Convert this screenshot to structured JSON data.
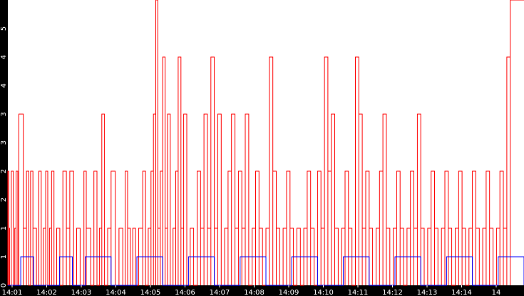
{
  "chart_data": {
    "type": "line",
    "title": "",
    "xlabel": "",
    "ylabel": "",
    "ylim": [
      0,
      5
    ],
    "y_ticks": [
      "0",
      "1",
      "1",
      "2",
      "2",
      "3",
      "3",
      "4",
      "4",
      "5"
    ],
    "y_tick_values": [
      0,
      0.5,
      1,
      1.5,
      2,
      2.5,
      3,
      3.5,
      4,
      4.5
    ],
    "x_tick_labels": [
      "14:01",
      "14:02",
      "14:03",
      "14:04",
      "14:05",
      "14:06",
      "14:07",
      "14:08",
      "14:09",
      "14:10",
      "14:11",
      "14:12",
      "14:13",
      "14:14",
      "14"
    ],
    "x_range_minutes": [
      14.0,
      15.0
    ],
    "x_tick_minutes": [
      1,
      2,
      3,
      4,
      5,
      6,
      7,
      8,
      9,
      10,
      11,
      12,
      13,
      14,
      15
    ],
    "grid": false,
    "background": "#ffffff",
    "series": [
      {
        "color": "#ff0000",
        "segments": [
          [
            0.0,
            2
          ],
          [
            0.3,
            1
          ],
          [
            0.5,
            0
          ],
          [
            1.0,
            2
          ],
          [
            1.6,
            0
          ],
          [
            2.0,
            1
          ],
          [
            2.4,
            2
          ],
          [
            2.9,
            0
          ],
          [
            3.2,
            3
          ],
          [
            4.5,
            1
          ],
          [
            5.4,
            2
          ],
          [
            6.1,
            0
          ],
          [
            6.6,
            2
          ],
          [
            7.3,
            1
          ],
          [
            8.3,
            0
          ],
          [
            9.0,
            2
          ],
          [
            9.7,
            0
          ],
          [
            10.3,
            1
          ],
          [
            11.0,
            2
          ],
          [
            11.6,
            0
          ],
          [
            12.1,
            1
          ],
          [
            12.7,
            2
          ],
          [
            13.4,
            0
          ],
          [
            14.2,
            1
          ],
          [
            15.1,
            0
          ],
          [
            16.0,
            2
          ],
          [
            17.0,
            1
          ],
          [
            18.0,
            2
          ],
          [
            19.1,
            0
          ],
          [
            20.0,
            1
          ],
          [
            21.0,
            0
          ],
          [
            22.1,
            2
          ],
          [
            22.8,
            1
          ],
          [
            24.1,
            0
          ],
          [
            25.0,
            2
          ],
          [
            25.9,
            0
          ],
          [
            26.6,
            1
          ],
          [
            27.3,
            3
          ],
          [
            28.1,
            0
          ],
          [
            29.0,
            1
          ],
          [
            30.0,
            2
          ],
          [
            31.2,
            0
          ],
          [
            32.3,
            1
          ],
          [
            33.4,
            0
          ],
          [
            34.1,
            2
          ],
          [
            34.8,
            1
          ],
          [
            35.6,
            0
          ],
          [
            36.3,
            1
          ],
          [
            37.1,
            0
          ],
          [
            38.0,
            1
          ],
          [
            39.2,
            2
          ],
          [
            40.0,
            0
          ],
          [
            40.8,
            1
          ],
          [
            41.6,
            2
          ],
          [
            42.3,
            3
          ],
          [
            43.0,
            5
          ],
          [
            43.6,
            1
          ],
          [
            44.3,
            2
          ],
          [
            45.0,
            4
          ],
          [
            45.7,
            1
          ],
          [
            46.4,
            3
          ],
          [
            47.2,
            0
          ],
          [
            48.0,
            1
          ],
          [
            48.8,
            2
          ],
          [
            49.5,
            4
          ],
          [
            50.3,
            1
          ],
          [
            51.1,
            3
          ],
          [
            52.0,
            0
          ],
          [
            53.0,
            1
          ],
          [
            54.0,
            0
          ],
          [
            55.0,
            2
          ],
          [
            56.0,
            1
          ],
          [
            57.0,
            3
          ],
          [
            58.0,
            1
          ],
          [
            59.0,
            4
          ],
          [
            60.0,
            1
          ],
          [
            61.0,
            3
          ],
          [
            62.0,
            0
          ],
          [
            63.0,
            1
          ],
          [
            64.0,
            2
          ],
          [
            65.0,
            3
          ],
          [
            66.0,
            1
          ],
          [
            67.0,
            2
          ],
          [
            68.0,
            1
          ],
          [
            69.0,
            3
          ],
          [
            70.0,
            0
          ],
          [
            71.0,
            1
          ],
          [
            72.0,
            2
          ],
          [
            73.0,
            1
          ],
          [
            74.0,
            0
          ],
          [
            75.0,
            1
          ],
          [
            76.0,
            4
          ],
          [
            77.0,
            2
          ],
          [
            78.0,
            1
          ],
          [
            79.0,
            0
          ],
          [
            80.0,
            1
          ],
          [
            81.0,
            2
          ],
          [
            82.0,
            1
          ],
          [
            83.0,
            0
          ],
          [
            84.0,
            1
          ],
          [
            85.0,
            0
          ],
          [
            86.0,
            1
          ],
          [
            87.0,
            2
          ],
          [
            88.0,
            1
          ],
          [
            89.0,
            0
          ],
          [
            90.0,
            2
          ],
          [
            91.0,
            1
          ],
          [
            92.0,
            4
          ],
          [
            93.0,
            2
          ],
          [
            94.0,
            3
          ],
          [
            95.0,
            1
          ],
          [
            96.0,
            0
          ],
          [
            97.0,
            1
          ],
          [
            98.0,
            2
          ],
          [
            99.0,
            1
          ],
          [
            100.0,
            0
          ],
          [
            101.0,
            4
          ],
          [
            102.0,
            3
          ],
          [
            103.0,
            1
          ],
          [
            104.0,
            2
          ],
          [
            105.0,
            1
          ],
          [
            106.0,
            0
          ],
          [
            107.0,
            1
          ],
          [
            108.0,
            2
          ],
          [
            109.0,
            3
          ],
          [
            110.0,
            1
          ],
          [
            111.0,
            0
          ],
          [
            112.0,
            1
          ],
          [
            113.0,
            2
          ],
          [
            114.0,
            1
          ],
          [
            115.0,
            0
          ],
          [
            116.0,
            1
          ],
          [
            117.0,
            2
          ],
          [
            118.0,
            1
          ],
          [
            119.0,
            3
          ],
          [
            120.0,
            1
          ],
          [
            121.0,
            0
          ],
          [
            122.0,
            1
          ],
          [
            123.0,
            2
          ],
          [
            124.0,
            1
          ],
          [
            125.0,
            0
          ],
          [
            126.0,
            1
          ],
          [
            127.0,
            2
          ],
          [
            128.0,
            1
          ],
          [
            129.0,
            0
          ],
          [
            130.0,
            1
          ],
          [
            131.0,
            2
          ],
          [
            132.0,
            1
          ],
          [
            133.0,
            0
          ],
          [
            134.0,
            1
          ],
          [
            135.0,
            2
          ],
          [
            136.0,
            1
          ],
          [
            137.0,
            0
          ],
          [
            138.0,
            1
          ],
          [
            139.0,
            2
          ],
          [
            140.0,
            1
          ],
          [
            141.0,
            0
          ],
          [
            142.0,
            1
          ],
          [
            143.0,
            2
          ],
          [
            144.0,
            1
          ],
          [
            145.0,
            4
          ],
          [
            146.0,
            5
          ]
        ]
      },
      {
        "color": "#0000ff",
        "segments": [
          [
            0.0,
            0
          ],
          [
            0.5,
            0.5
          ],
          [
            1.0,
            0
          ],
          [
            2.0,
            0.5
          ],
          [
            2.5,
            0
          ],
          [
            3.0,
            0.5
          ],
          [
            4.0,
            0
          ],
          [
            5.0,
            0.5
          ],
          [
            6.0,
            0
          ],
          [
            7.0,
            0.5
          ],
          [
            8.0,
            0
          ],
          [
            9.0,
            0.5
          ],
          [
            10.0,
            0
          ],
          [
            11.0,
            0.5
          ],
          [
            12.0,
            0
          ],
          [
            13.0,
            0.5
          ],
          [
            14.0,
            0
          ],
          [
            15.0,
            0.5
          ],
          [
            16.0,
            0
          ],
          [
            17.0,
            0.5
          ],
          [
            18.0,
            0
          ],
          [
            19.0,
            0.5
          ],
          [
            20.0,
            0
          ]
        ]
      }
    ]
  }
}
